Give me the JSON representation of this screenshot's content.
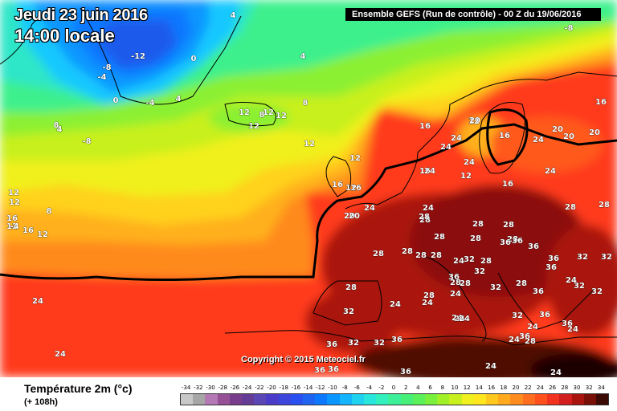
{
  "header": {
    "date_label": "Jeudi 23 juin 2016",
    "time_label": "14:00 locale",
    "run_info": "Ensemble GEFS  (Run de contrôle)  - 00 Z du 19/06/2016"
  },
  "copyright": "Copyright © 2015 Meteociel.fr",
  "footer": {
    "variable": "Température 2m (°c)",
    "lead_time": "(+ 108h)"
  },
  "legend": {
    "values": [
      "-34",
      "-32",
      "-30",
      "-28",
      "-26",
      "-24",
      "-22",
      "-20",
      "-18",
      "-16",
      "-14",
      "-12",
      "-10",
      "-8",
      "-6",
      "-4",
      "-2",
      "0",
      "2",
      "4",
      "6",
      "8",
      "10",
      "12",
      "14",
      "16",
      "18",
      "20",
      "22",
      "24",
      "26",
      "28",
      "30",
      "32",
      "34"
    ],
    "colors": [
      "#c8c8c8",
      "#a6a6a6",
      "#b478b4",
      "#965096",
      "#783c8c",
      "#643c96",
      "#5a46b4",
      "#4a3cc8",
      "#3c46dc",
      "#2850f0",
      "#1e64f0",
      "#0a78ff",
      "#0a96ff",
      "#14b4ff",
      "#1ed2f0",
      "#28e6dc",
      "#32f0be",
      "#3cf09a",
      "#46f078",
      "#5af05a",
      "#78f03c",
      "#a0f028",
      "#c8f01e",
      "#f0f01e",
      "#ffe61e",
      "#ffc81e",
      "#ffaa1e",
      "#ff8c1e",
      "#ff6e1e",
      "#ff501e",
      "#f0321e",
      "#d21e1e",
      "#aa140f",
      "#781008",
      "#3c0a05"
    ]
  },
  "map_labels": [
    {
      "text": "-12"
    },
    {
      "text": "-8"
    },
    {
      "text": "-4"
    },
    {
      "text": "0"
    },
    {
      "text": "0"
    },
    {
      "text": "-4"
    },
    {
      "text": "4"
    },
    {
      "text": "4"
    },
    {
      "text": "4"
    },
    {
      "text": "-8"
    },
    {
      "text": "4"
    },
    {
      "text": "8"
    },
    {
      "text": "8"
    },
    {
      "text": "12"
    },
    {
      "text": "12"
    },
    {
      "text": "12"
    },
    {
      "text": "12"
    },
    {
      "text": "12"
    },
    {
      "text": "8"
    },
    {
      "text": "12"
    },
    {
      "text": "16"
    },
    {
      "text": "12"
    },
    {
      "text": "16"
    },
    {
      "text": "8"
    },
    {
      "text": "12"
    },
    {
      "text": "16"
    },
    {
      "text": "12"
    },
    {
      "text": "16"
    },
    {
      "text": "12"
    },
    {
      "text": "16"
    },
    {
      "text": "20"
    },
    {
      "text": "24"
    },
    {
      "text": "16"
    },
    {
      "text": "20"
    },
    {
      "text": "24"
    },
    {
      "text": "20"
    },
    {
      "text": "20"
    },
    {
      "text": "24"
    },
    {
      "text": "24"
    },
    {
      "text": "16"
    },
    {
      "text": "12"
    },
    {
      "text": "16"
    },
    {
      "text": "24"
    },
    {
      "text": "24"
    },
    {
      "text": "20"
    },
    {
      "text": "24"
    },
    {
      "text": "28"
    },
    {
      "text": "28"
    },
    {
      "text": "28"
    },
    {
      "text": "28"
    },
    {
      "text": "28"
    },
    {
      "text": "28"
    },
    {
      "text": "28"
    },
    {
      "text": "28"
    },
    {
      "text": "28"
    },
    {
      "text": "36"
    },
    {
      "text": "36"
    },
    {
      "text": "36"
    },
    {
      "text": "28"
    },
    {
      "text": "28"
    },
    {
      "text": "28"
    },
    {
      "text": "24"
    },
    {
      "text": "32"
    },
    {
      "text": "28"
    },
    {
      "text": "32"
    },
    {
      "text": "36"
    },
    {
      "text": "36"
    },
    {
      "text": "32"
    },
    {
      "text": "32"
    },
    {
      "text": "28"
    },
    {
      "text": "32"
    },
    {
      "text": "28"
    },
    {
      "text": "24"
    },
    {
      "text": "28"
    },
    {
      "text": "32"
    },
    {
      "text": "28"
    },
    {
      "text": "24"
    },
    {
      "text": "24"
    },
    {
      "text": "28"
    },
    {
      "text": "36"
    },
    {
      "text": "32"
    },
    {
      "text": "24"
    },
    {
      "text": "32"
    },
    {
      "text": "36"
    },
    {
      "text": "24"
    },
    {
      "text": "24"
    },
    {
      "text": "32"
    },
    {
      "text": "24"
    },
    {
      "text": "24"
    },
    {
      "text": "36"
    },
    {
      "text": "24"
    },
    {
      "text": "36"
    },
    {
      "text": "36"
    },
    {
      "text": "32"
    },
    {
      "text": "32"
    },
    {
      "text": "36"
    },
    {
      "text": "24"
    },
    {
      "text": "36"
    },
    {
      "text": "36"
    },
    {
      "text": "36"
    },
    {
      "text": "24"
    },
    {
      "text": "24"
    },
    {
      "text": "24"
    },
    {
      "text": "-8"
    },
    {
      "text": "12"
    },
    {
      "text": "24"
    },
    {
      "text": "16"
    },
    {
      "text": "-4"
    },
    {
      "text": "12"
    },
    {
      "text": "20"
    },
    {
      "text": "28"
    },
    {
      "text": "36"
    },
    {
      "text": "24"
    },
    {
      "text": "28"
    }
  ]
}
